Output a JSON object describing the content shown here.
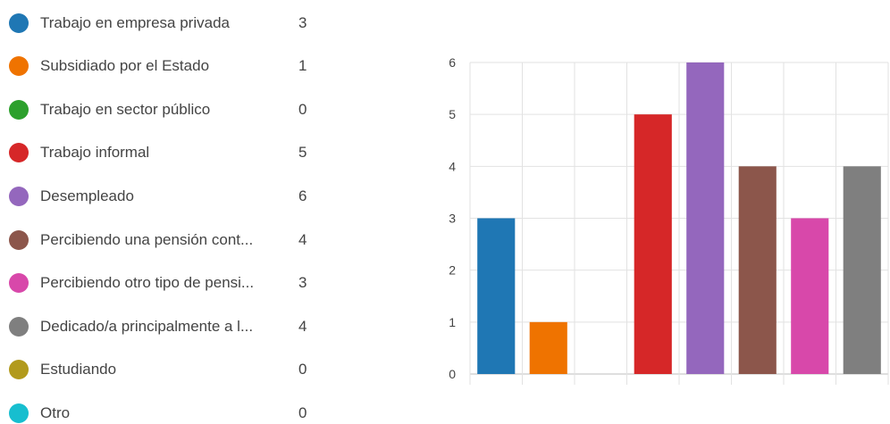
{
  "legend": {
    "items": [
      {
        "label": "Trabajo en empresa privada",
        "count": "3",
        "color": "#1f77b4"
      },
      {
        "label": "Subsidiado por el Estado",
        "count": "1",
        "color": "#ef7300"
      },
      {
        "label": "Trabajo en sector público",
        "count": "0",
        "color": "#2ca02c"
      },
      {
        "label": "Trabajo informal",
        "count": "5",
        "color": "#d62728"
      },
      {
        "label": "Desempleado",
        "count": "6",
        "color": "#9467bd"
      },
      {
        "label": "Percibiendo una pensión cont...",
        "count": "4",
        "color": "#8c564b"
      },
      {
        "label": "Percibiendo otro tipo de pensi...",
        "count": "3",
        "color": "#d848aa"
      },
      {
        "label": "Dedicado/a principalmente a l...",
        "count": "4",
        "color": "#7f7f7f"
      },
      {
        "label": "Estudiando",
        "count": "0",
        "color": "#b29a1c"
      },
      {
        "label": "Otro",
        "count": "0",
        "color": "#17becf"
      }
    ]
  },
  "chart_data": {
    "type": "bar",
    "categories": [
      "Trabajo en empresa privada",
      "Subsidiado por el Estado",
      "Trabajo en sector público",
      "Trabajo informal",
      "Desempleado",
      "Percibiendo una pensión cont...",
      "Percibiendo otro tipo de pensi...",
      "Dedicado/a principalmente a l..."
    ],
    "values": [
      3,
      1,
      0,
      5,
      6,
      4,
      3,
      4
    ],
    "colors": [
      "#1f77b4",
      "#ef7300",
      "#2ca02c",
      "#d62728",
      "#9467bd",
      "#8c564b",
      "#d848aa",
      "#7f7f7f"
    ],
    "title": "",
    "xlabel": "",
    "ylabel": "",
    "ylim": [
      0,
      6
    ],
    "yticks": [
      0,
      1,
      2,
      3,
      4,
      5,
      6
    ],
    "grid": true,
    "legend": "left"
  }
}
